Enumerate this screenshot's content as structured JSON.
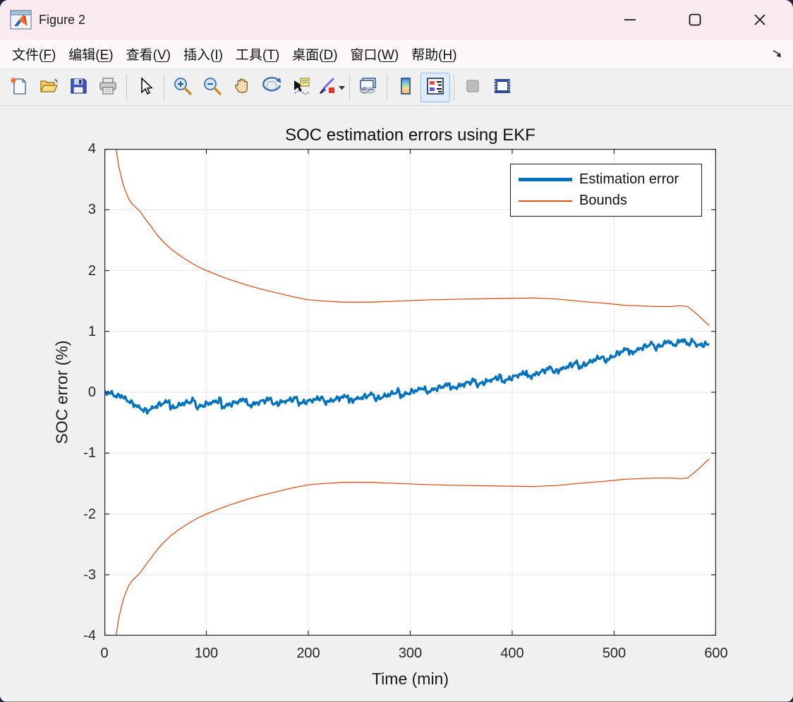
{
  "window": {
    "title": "Figure 2",
    "controls": [
      {
        "name": "minimize"
      },
      {
        "name": "maximize"
      },
      {
        "name": "close"
      }
    ]
  },
  "menu": {
    "items": [
      {
        "label": "文件",
        "mnemonic": "F"
      },
      {
        "label": "编辑",
        "mnemonic": "E"
      },
      {
        "label": "查看",
        "mnemonic": "V"
      },
      {
        "label": "插入",
        "mnemonic": "I"
      },
      {
        "label": "工具",
        "mnemonic": "T"
      },
      {
        "label": "桌面",
        "mnemonic": "D"
      },
      {
        "label": "窗口",
        "mnemonic": "W"
      },
      {
        "label": "帮助",
        "mnemonic": "H"
      }
    ],
    "dock_arrow": true
  },
  "toolbar": {
    "items": [
      {
        "icon": "new-figure"
      },
      {
        "icon": "open-file"
      },
      {
        "icon": "save-figure"
      },
      {
        "icon": "print-figure"
      },
      {
        "sep": true
      },
      {
        "icon": "edit-plot-cursor"
      },
      {
        "sep": true
      },
      {
        "icon": "zoom-in"
      },
      {
        "icon": "zoom-out"
      },
      {
        "icon": "pan-hand"
      },
      {
        "icon": "rotate-3d"
      },
      {
        "icon": "data-cursor"
      },
      {
        "icon": "brush",
        "caret": true
      },
      {
        "sep": true
      },
      {
        "icon": "link-plot"
      },
      {
        "sep": true
      },
      {
        "icon": "insert-colorbar"
      },
      {
        "icon": "insert-legend",
        "active": true
      },
      {
        "sep": true
      },
      {
        "icon": "property-editor",
        "disabled": true
      },
      {
        "icon": "plot-tools-dock"
      }
    ]
  },
  "chart_data": {
    "type": "line",
    "title": "SOC estimation errors using EKF",
    "xlabel": "Time (min)",
    "ylabel": "SOC error (%)",
    "xlim": [
      0,
      600
    ],
    "ylim": [
      -4,
      4
    ],
    "xticks": [
      0,
      100,
      200,
      300,
      400,
      500,
      600
    ],
    "yticks": [
      -4,
      -3,
      -2,
      -1,
      0,
      1,
      2,
      3,
      4
    ],
    "grid": true,
    "colors": {
      "axis": "#262626",
      "grid": "#e6e6e6",
      "plot_bg": "#ffffff",
      "blue": "#0072BD",
      "orange": "#D95319"
    },
    "legend": {
      "position": "northeast",
      "entries": [
        "Estimation error",
        "Bounds"
      ]
    },
    "series": [
      {
        "name": "Estimation error",
        "color": "#0072BD",
        "width": 3.2,
        "noise": {
          "amplitudes": [
            0.024,
            0.02,
            0.013
          ],
          "freqs": [
            1.9,
            4.3,
            9.1
          ],
          "phases": [
            0.5,
            1.3,
            0.0
          ],
          "step": 1.2
        },
        "points": [
          [
            0,
            0
          ],
          [
            5,
            -0.01
          ],
          [
            9,
            -0.03
          ],
          [
            12,
            -0.08
          ],
          [
            15,
            -0.04
          ],
          [
            20,
            -0.1
          ],
          [
            26,
            -0.17
          ],
          [
            32,
            -0.23
          ],
          [
            38,
            -0.29
          ],
          [
            42,
            -0.31
          ],
          [
            47,
            -0.26
          ],
          [
            53,
            -0.21
          ],
          [
            59,
            -0.17
          ],
          [
            64,
            -0.14
          ],
          [
            65,
            -0.27
          ],
          [
            71,
            -0.23
          ],
          [
            78,
            -0.18
          ],
          [
            85,
            -0.15
          ],
          [
            89,
            -0.12
          ],
          [
            90,
            -0.26
          ],
          [
            96,
            -0.22
          ],
          [
            103,
            -0.18
          ],
          [
            110,
            -0.15
          ],
          [
            114,
            -0.12
          ],
          [
            115,
            -0.25
          ],
          [
            121,
            -0.21
          ],
          [
            128,
            -0.17
          ],
          [
            135,
            -0.13
          ],
          [
            139,
            -0.1
          ],
          [
            140,
            -0.23
          ],
          [
            147,
            -0.19
          ],
          [
            154,
            -0.15
          ],
          [
            161,
            -0.12
          ],
          [
            164,
            -0.09
          ],
          [
            165,
            -0.21
          ],
          [
            172,
            -0.17
          ],
          [
            179,
            -0.14
          ],
          [
            186,
            -0.11
          ],
          [
            189,
            -0.08
          ],
          [
            190,
            -0.19
          ],
          [
            197,
            -0.16
          ],
          [
            204,
            -0.13
          ],
          [
            211,
            -0.1
          ],
          [
            214,
            -0.07
          ],
          [
            215,
            -0.17
          ],
          [
            222,
            -0.14
          ],
          [
            229,
            -0.1
          ],
          [
            236,
            -0.07
          ],
          [
            239,
            -0.05
          ],
          [
            240,
            -0.15
          ],
          [
            247,
            -0.11
          ],
          [
            254,
            -0.08
          ],
          [
            261,
            -0.04
          ],
          [
            264,
            -0.02
          ],
          [
            265,
            -0.12
          ],
          [
            272,
            -0.08
          ],
          [
            279,
            -0.04
          ],
          [
            286,
            0.0
          ],
          [
            289,
            0.03
          ],
          [
            290,
            -0.07
          ],
          [
            297,
            -0.02
          ],
          [
            304,
            0.02
          ],
          [
            311,
            0.06
          ],
          [
            314,
            0.09
          ],
          [
            315,
            -0.01
          ],
          [
            322,
            0.04
          ],
          [
            329,
            0.08
          ],
          [
            336,
            0.12
          ],
          [
            339,
            0.15
          ],
          [
            340,
            0.05
          ],
          [
            347,
            0.1
          ],
          [
            354,
            0.14
          ],
          [
            361,
            0.18
          ],
          [
            364,
            0.21
          ],
          [
            365,
            0.11
          ],
          [
            372,
            0.16
          ],
          [
            379,
            0.2
          ],
          [
            386,
            0.24
          ],
          [
            389,
            0.27
          ],
          [
            390,
            0.17
          ],
          [
            397,
            0.22
          ],
          [
            404,
            0.27
          ],
          [
            411,
            0.31
          ],
          [
            414,
            0.34
          ],
          [
            415,
            0.24
          ],
          [
            422,
            0.29
          ],
          [
            429,
            0.34
          ],
          [
            436,
            0.39
          ],
          [
            439,
            0.42
          ],
          [
            440,
            0.32
          ],
          [
            447,
            0.37
          ],
          [
            454,
            0.42
          ],
          [
            461,
            0.47
          ],
          [
            464,
            0.5
          ],
          [
            465,
            0.4
          ],
          [
            472,
            0.46
          ],
          [
            479,
            0.52
          ],
          [
            486,
            0.57
          ],
          [
            489,
            0.6
          ],
          [
            490,
            0.5
          ],
          [
            497,
            0.57
          ],
          [
            504,
            0.64
          ],
          [
            511,
            0.7
          ],
          [
            514,
            0.73
          ],
          [
            515,
            0.63
          ],
          [
            521,
            0.68
          ],
          [
            527,
            0.73
          ],
          [
            533,
            0.77
          ],
          [
            538,
            0.81
          ],
          [
            540,
            0.72
          ],
          [
            546,
            0.77
          ],
          [
            551,
            0.82
          ],
          [
            555,
            0.85
          ],
          [
            557,
            0.76
          ],
          [
            561,
            0.8
          ],
          [
            566,
            0.85
          ],
          [
            569,
            0.87
          ],
          [
            571,
            0.78
          ],
          [
            575,
            0.82
          ],
          [
            578,
            0.85
          ],
          [
            580,
            0.78
          ],
          [
            583,
            0.77
          ],
          [
            586,
            0.78
          ],
          [
            590,
            0.79
          ],
          [
            593,
            0.78
          ]
        ]
      },
      {
        "name": "Bounds",
        "color": "#D95319",
        "width": 1.3,
        "mirror_lower": true,
        "points": [
          [
            11.5,
            4.0
          ],
          [
            14,
            3.72
          ],
          [
            17,
            3.5
          ],
          [
            20,
            3.33
          ],
          [
            24,
            3.17
          ],
          [
            28,
            3.08
          ],
          [
            32,
            3.02
          ],
          [
            35,
            2.97
          ],
          [
            40,
            2.85
          ],
          [
            46,
            2.72
          ],
          [
            52,
            2.58
          ],
          [
            58,
            2.47
          ],
          [
            65,
            2.36
          ],
          [
            72,
            2.27
          ],
          [
            80,
            2.18
          ],
          [
            90,
            2.08
          ],
          [
            100,
            2.0
          ],
          [
            112,
            1.92
          ],
          [
            125,
            1.84
          ],
          [
            140,
            1.76
          ],
          [
            155,
            1.69
          ],
          [
            170,
            1.63
          ],
          [
            185,
            1.57
          ],
          [
            200,
            1.52
          ],
          [
            215,
            1.5
          ],
          [
            235,
            1.48
          ],
          [
            260,
            1.48
          ],
          [
            290,
            1.5
          ],
          [
            320,
            1.52
          ],
          [
            350,
            1.53
          ],
          [
            385,
            1.54
          ],
          [
            420,
            1.55
          ],
          [
            445,
            1.53
          ],
          [
            470,
            1.49
          ],
          [
            493,
            1.46
          ],
          [
            510,
            1.43
          ],
          [
            524,
            1.42
          ],
          [
            540,
            1.41
          ],
          [
            556,
            1.41
          ],
          [
            565,
            1.42
          ],
          [
            572,
            1.41
          ],
          [
            578,
            1.33
          ],
          [
            584,
            1.24
          ],
          [
            589,
            1.16
          ],
          [
            593,
            1.1
          ]
        ]
      }
    ]
  }
}
